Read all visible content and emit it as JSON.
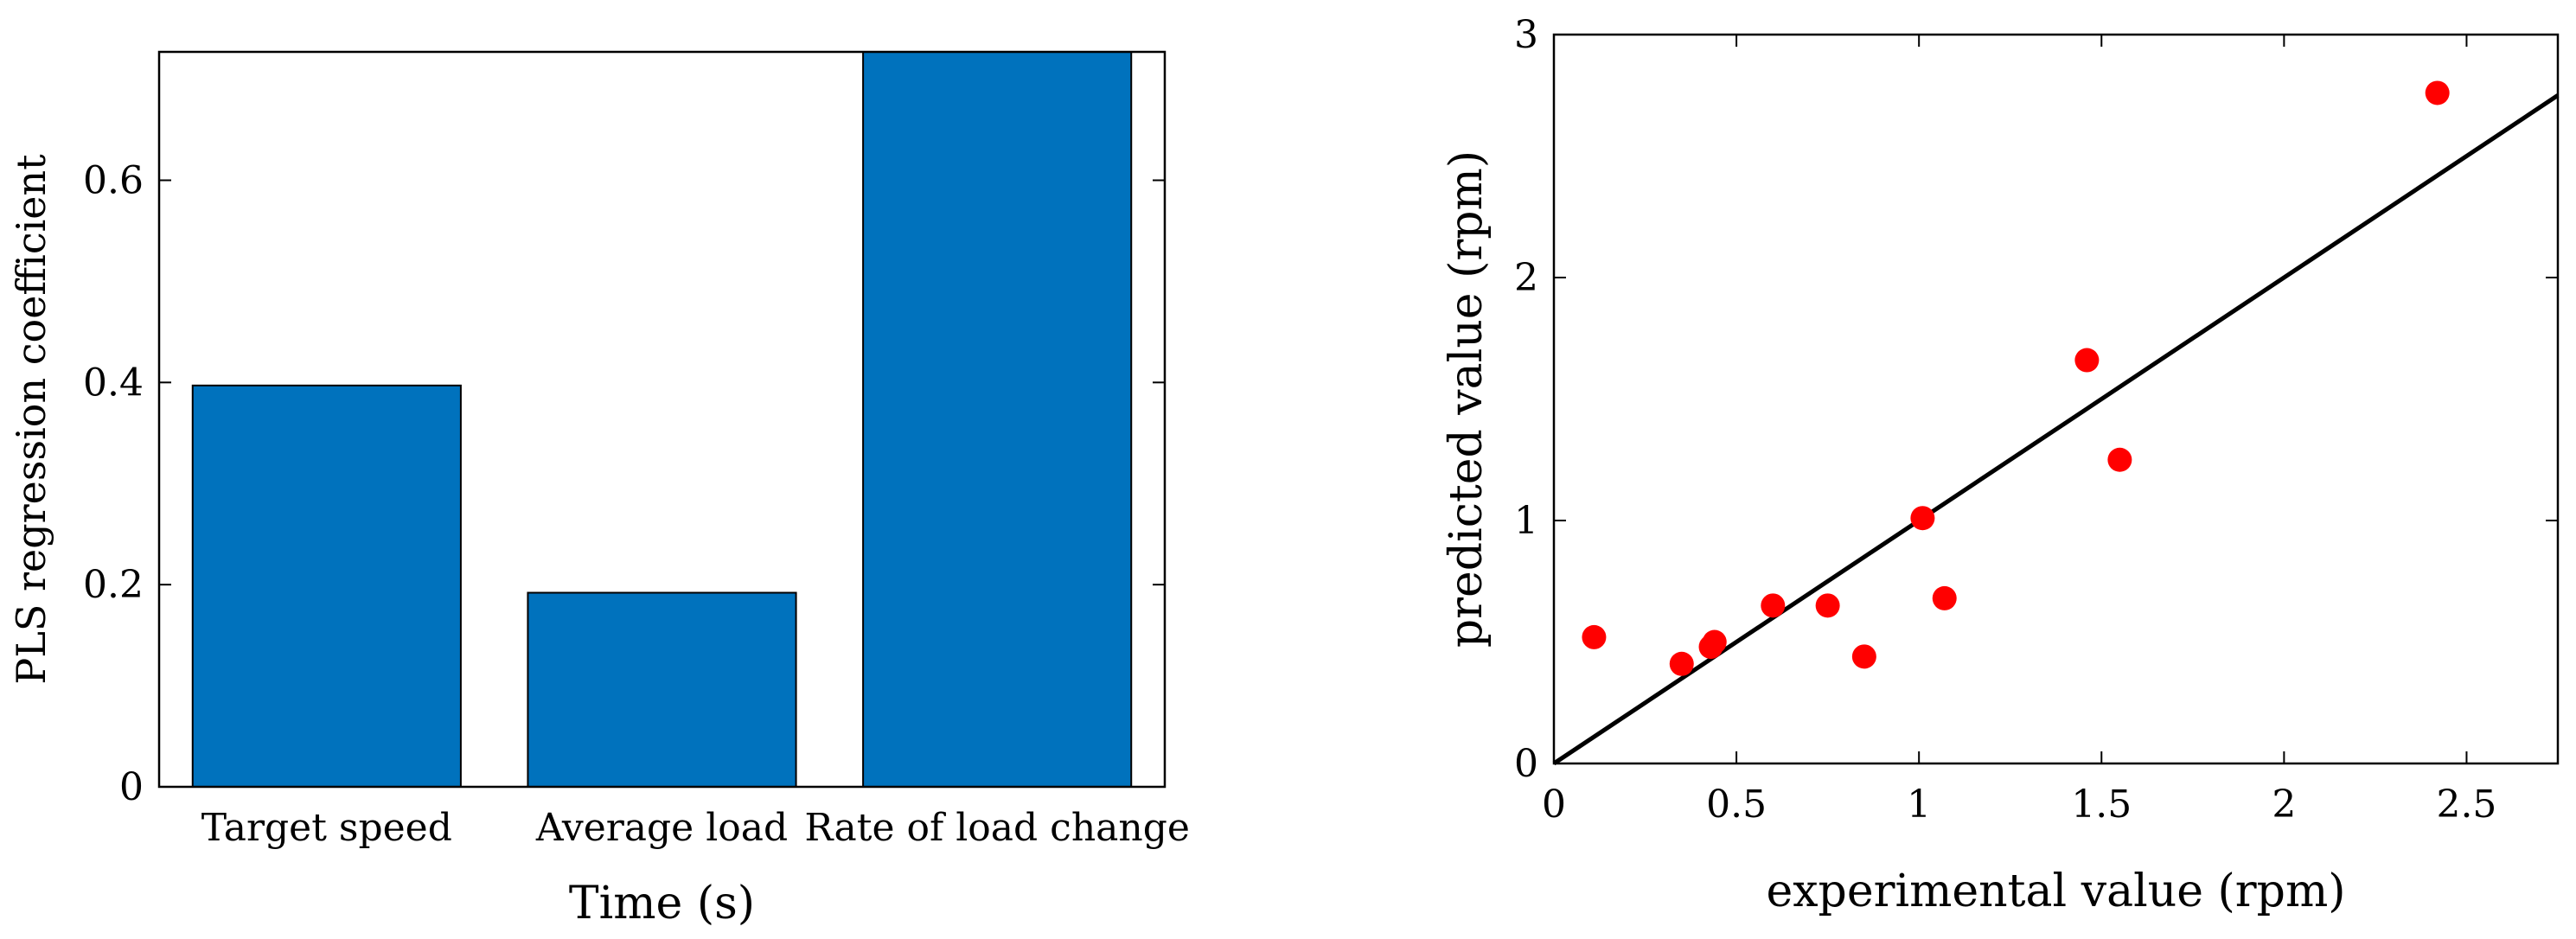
{
  "chart_data": [
    {
      "type": "bar",
      "title": "",
      "xlabel": "Time (s)",
      "ylabel": "PLS regression coefficient",
      "categories": [
        "Target speed",
        "Average load",
        "Rate of load change"
      ],
      "values": [
        0.397,
        0.192,
        0.727
      ],
      "ylim": [
        0,
        0.727
      ],
      "yticks": [
        0,
        0.2,
        0.4,
        0.6
      ],
      "ytick_labels": [
        "0",
        "0.2",
        "0.4",
        "0.6"
      ],
      "bar_color": "#0072BD",
      "grid": false
    },
    {
      "type": "scatter",
      "title": "",
      "xlabel": "experimental value (rpm)",
      "ylabel": "predicted value (rpm)",
      "xlim": [
        0,
        2.75
      ],
      "ylim": [
        0,
        3
      ],
      "xticks": [
        0,
        0.5,
        1,
        1.5,
        2,
        2.5
      ],
      "xtick_labels": [
        "0",
        "0.5",
        "1",
        "1.5",
        "2",
        "2.5"
      ],
      "yticks": [
        0,
        1,
        2,
        3
      ],
      "ytick_labels": [
        "0",
        "1",
        "2",
        "3"
      ],
      "points": [
        {
          "x": 0.11,
          "y": 0.52
        },
        {
          "x": 0.35,
          "y": 0.41
        },
        {
          "x": 0.43,
          "y": 0.48
        },
        {
          "x": 0.44,
          "y": 0.5
        },
        {
          "x": 0.6,
          "y": 0.65
        },
        {
          "x": 0.75,
          "y": 0.65
        },
        {
          "x": 0.85,
          "y": 0.44
        },
        {
          "x": 1.01,
          "y": 1.01
        },
        {
          "x": 1.07,
          "y": 0.68
        },
        {
          "x": 1.46,
          "y": 1.66
        },
        {
          "x": 1.55,
          "y": 1.25
        },
        {
          "x": 2.42,
          "y": 2.76
        }
      ],
      "fit_line": {
        "x": [
          0,
          2.75
        ],
        "y": [
          0,
          2.75
        ]
      },
      "point_color": "#FF0000",
      "line_color": "#000000",
      "grid": false
    }
  ]
}
